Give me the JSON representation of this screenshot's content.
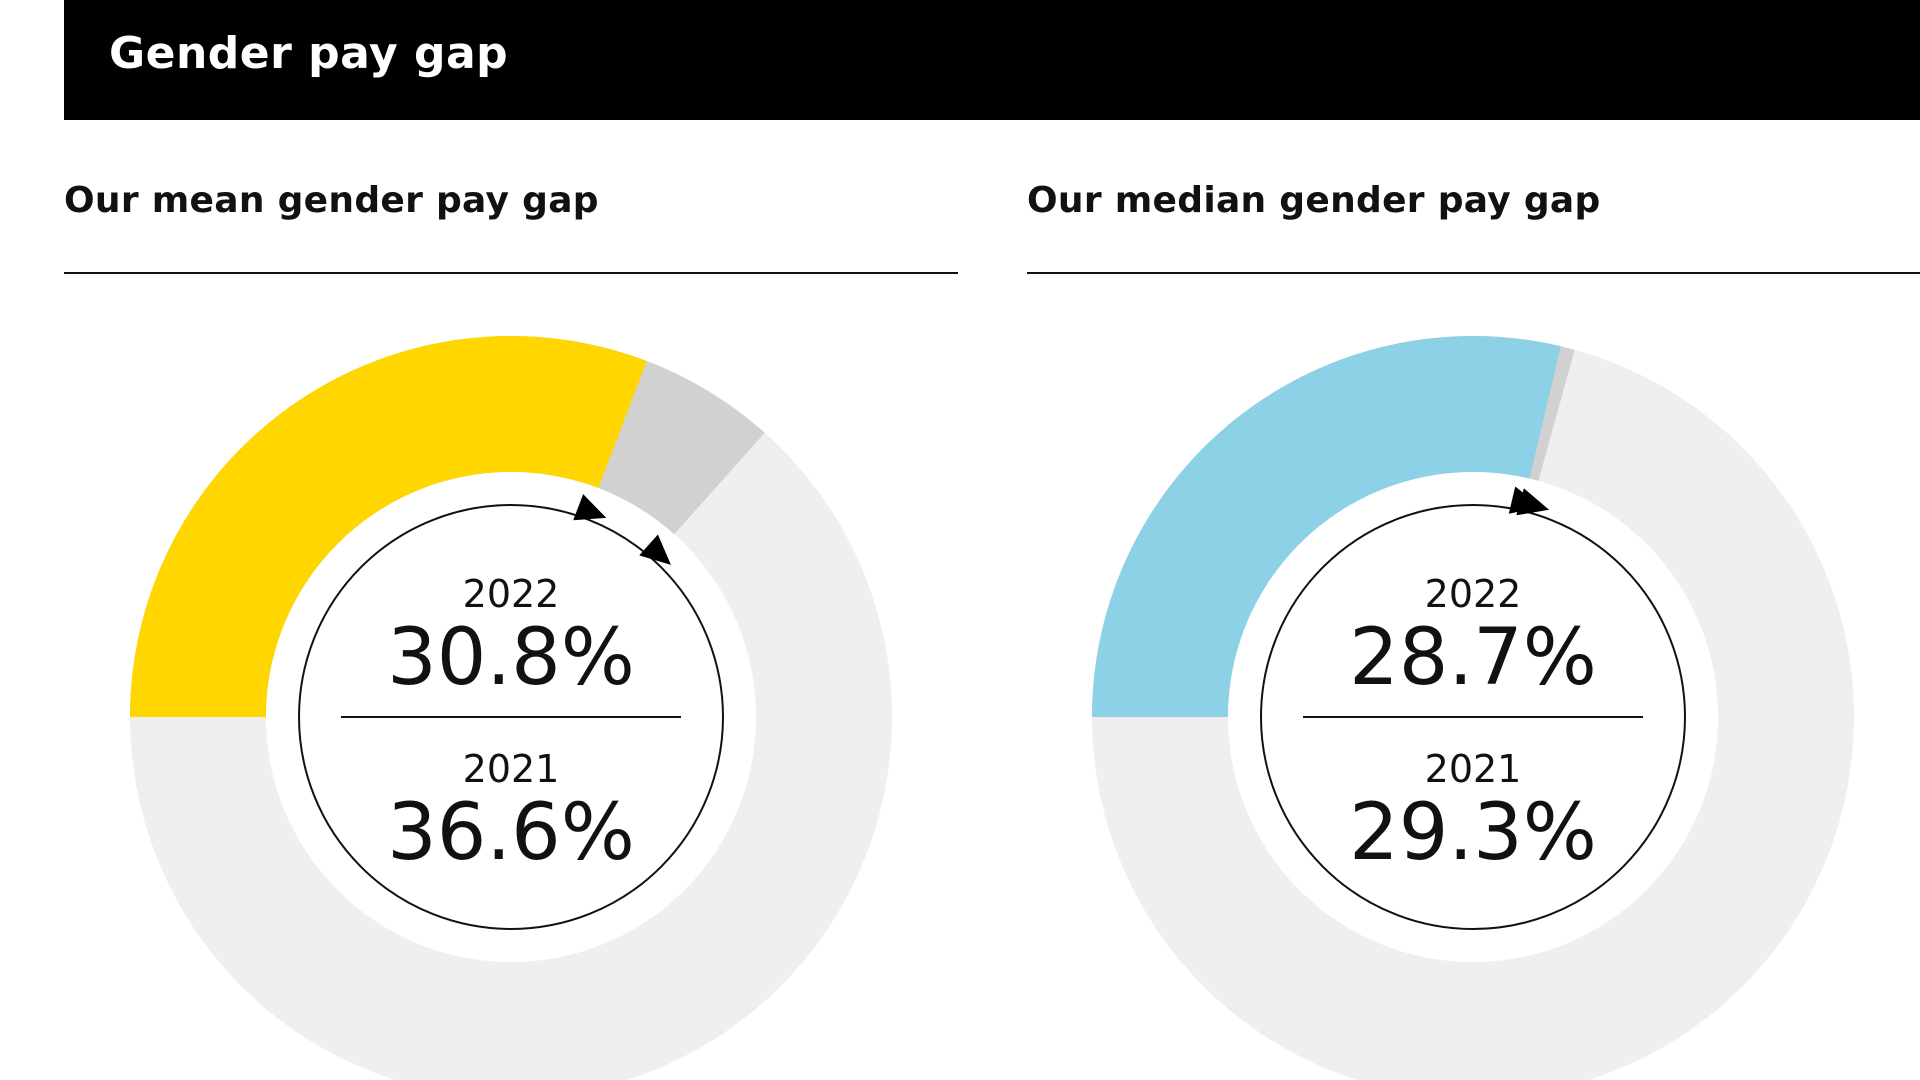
{
  "header": {
    "title": "Gender pay gap"
  },
  "colors": {
    "track": "#efefef",
    "previous": "#d1d1d1",
    "mean_accent": "#ffd600",
    "median_accent": "#8dd1e7",
    "ink": "#111111"
  },
  "chart_data": [
    {
      "type": "donut",
      "title": "Our mean gender pay gap",
      "unit": "%",
      "series": [
        {
          "year": "2022",
          "value": 30.8,
          "label": "30.8%",
          "color_key": "mean_accent"
        },
        {
          "year": "2021",
          "value": 36.6,
          "label": "36.6%",
          "color_key": "previous"
        }
      ]
    },
    {
      "type": "donut",
      "title": "Our median gender pay gap",
      "unit": "%",
      "series": [
        {
          "year": "2022",
          "value": 28.7,
          "label": "28.7%",
          "color_key": "median_accent"
        },
        {
          "year": "2021",
          "value": 29.3,
          "label": "29.3%",
          "color_key": "previous"
        }
      ]
    }
  ]
}
